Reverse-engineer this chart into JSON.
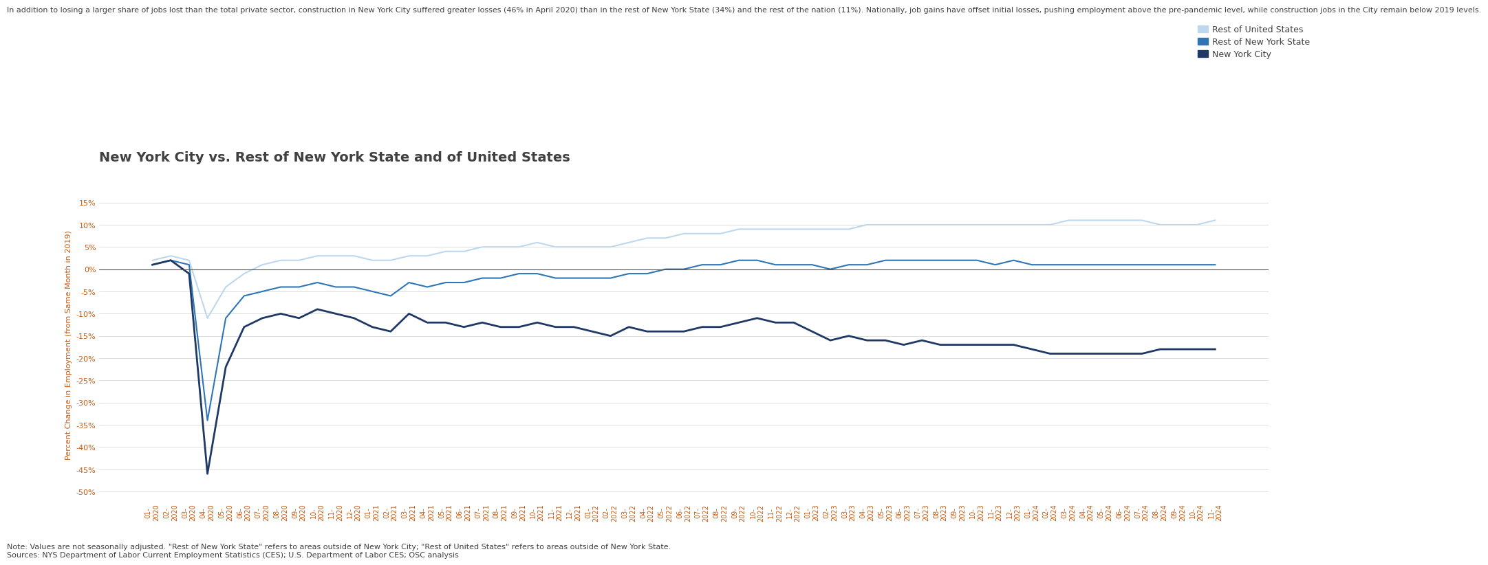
{
  "title": "New York City vs. Rest of New York State and of United States",
  "subtitle": "In addition to losing a larger share of jobs lost than the total private sector, construction in New York City suffered greater losses (46% in April 2020) than in the rest of New York State (34%) and the rest of the nation (11%). Nationally, job gains have offset initial losses, pushing employment above the pre-pandemic level, while construction jobs in the City remain below 2019 levels.",
  "ylabel": "Percent Change in Employment (from Same Month in 2019)",
  "note": "Note: Values are not seasonally adjusted. \"Rest of New York State\" refers to areas outside of New York City; \"Rest of United States\" refers to areas outside of New York State.\nSources: NYS Department of Labor Current Employment Statistics (CES); U.S. Department of Labor CES; OSC analysis",
  "legend": [
    "Rest of United States",
    "Rest of New York State",
    "New York City"
  ],
  "colors": {
    "nyc": "#1f3864",
    "rest_nys": "#2e75b6",
    "rest_us": "#bdd7ee"
  },
  "background_color": "#ffffff",
  "ylim": [
    -0.52,
    0.18
  ],
  "dates": [
    "01-2020",
    "02-2020",
    "03-2020",
    "04-2020",
    "05-2020",
    "06-2020",
    "07-2020",
    "08-2020",
    "09-2020",
    "10-2020",
    "11-2020",
    "12-2020",
    "01-2021",
    "02-2021",
    "03-2021",
    "04-2021",
    "05-2021",
    "06-2021",
    "07-2021",
    "08-2021",
    "09-2021",
    "10-2021",
    "11-2021",
    "12-2021",
    "01-2022",
    "02-2022",
    "03-2022",
    "04-2022",
    "05-2022",
    "06-2022",
    "07-2022",
    "08-2022",
    "09-2022",
    "10-2022",
    "11-2022",
    "12-2022",
    "01-2023",
    "02-2023",
    "03-2023",
    "04-2023",
    "05-2023",
    "06-2023",
    "07-2023",
    "08-2023",
    "09-2023",
    "10-2023",
    "11-2023",
    "12-2023",
    "01-2024",
    "02-2024",
    "03-2024",
    "04-2024",
    "05-2024",
    "06-2024",
    "07-2024",
    "08-2024",
    "09-2024",
    "10-2024",
    "11-2024"
  ],
  "nyc": [
    0.01,
    0.02,
    -0.01,
    -0.46,
    -0.22,
    -0.13,
    -0.11,
    -0.1,
    -0.11,
    -0.09,
    -0.1,
    -0.11,
    -0.13,
    -0.14,
    -0.1,
    -0.12,
    -0.12,
    -0.13,
    -0.12,
    -0.13,
    -0.13,
    -0.12,
    -0.13,
    -0.13,
    -0.14,
    -0.15,
    -0.13,
    -0.14,
    -0.14,
    -0.14,
    -0.13,
    -0.13,
    -0.12,
    -0.11,
    -0.12,
    -0.12,
    -0.14,
    -0.16,
    -0.15,
    -0.16,
    -0.16,
    -0.17,
    -0.16,
    -0.17,
    -0.17,
    -0.17,
    -0.17,
    -0.17,
    -0.18,
    -0.19,
    -0.19,
    -0.19,
    -0.19,
    -0.19,
    -0.19,
    -0.18,
    -0.18,
    -0.18,
    -0.18
  ],
  "rest_nys": [
    0.01,
    0.02,
    0.01,
    -0.34,
    -0.11,
    -0.06,
    -0.05,
    -0.04,
    -0.04,
    -0.03,
    -0.04,
    -0.04,
    -0.05,
    -0.06,
    -0.03,
    -0.04,
    -0.03,
    -0.03,
    -0.02,
    -0.02,
    -0.01,
    -0.01,
    -0.02,
    -0.02,
    -0.02,
    -0.02,
    -0.01,
    -0.01,
    0.0,
    0.0,
    0.01,
    0.01,
    0.02,
    0.02,
    0.01,
    0.01,
    0.01,
    0.0,
    0.01,
    0.01,
    0.02,
    0.02,
    0.02,
    0.02,
    0.02,
    0.02,
    0.01,
    0.02,
    0.01,
    0.01,
    0.01,
    0.01,
    0.01,
    0.01,
    0.01,
    0.01,
    0.01,
    0.01,
    0.01
  ],
  "rest_us": [
    0.02,
    0.03,
    0.02,
    -0.11,
    -0.04,
    -0.01,
    0.01,
    0.02,
    0.02,
    0.03,
    0.03,
    0.03,
    0.02,
    0.02,
    0.03,
    0.03,
    0.04,
    0.04,
    0.05,
    0.05,
    0.05,
    0.06,
    0.05,
    0.05,
    0.05,
    0.05,
    0.06,
    0.07,
    0.07,
    0.08,
    0.08,
    0.08,
    0.09,
    0.09,
    0.09,
    0.09,
    0.09,
    0.09,
    0.09,
    0.1,
    0.1,
    0.1,
    0.1,
    0.1,
    0.1,
    0.1,
    0.1,
    0.1,
    0.1,
    0.1,
    0.11,
    0.11,
    0.11,
    0.11,
    0.11,
    0.1,
    0.1,
    0.1,
    0.11
  ],
  "title_fontsize": 14,
  "subtitle_fontsize": 8,
  "ylabel_fontsize": 8,
  "note_fontsize": 8,
  "legend_fontsize": 9,
  "tick_fontsize": 7,
  "label_color": "#c55a11",
  "text_color": "#404040",
  "subtitle_color": "#404040"
}
